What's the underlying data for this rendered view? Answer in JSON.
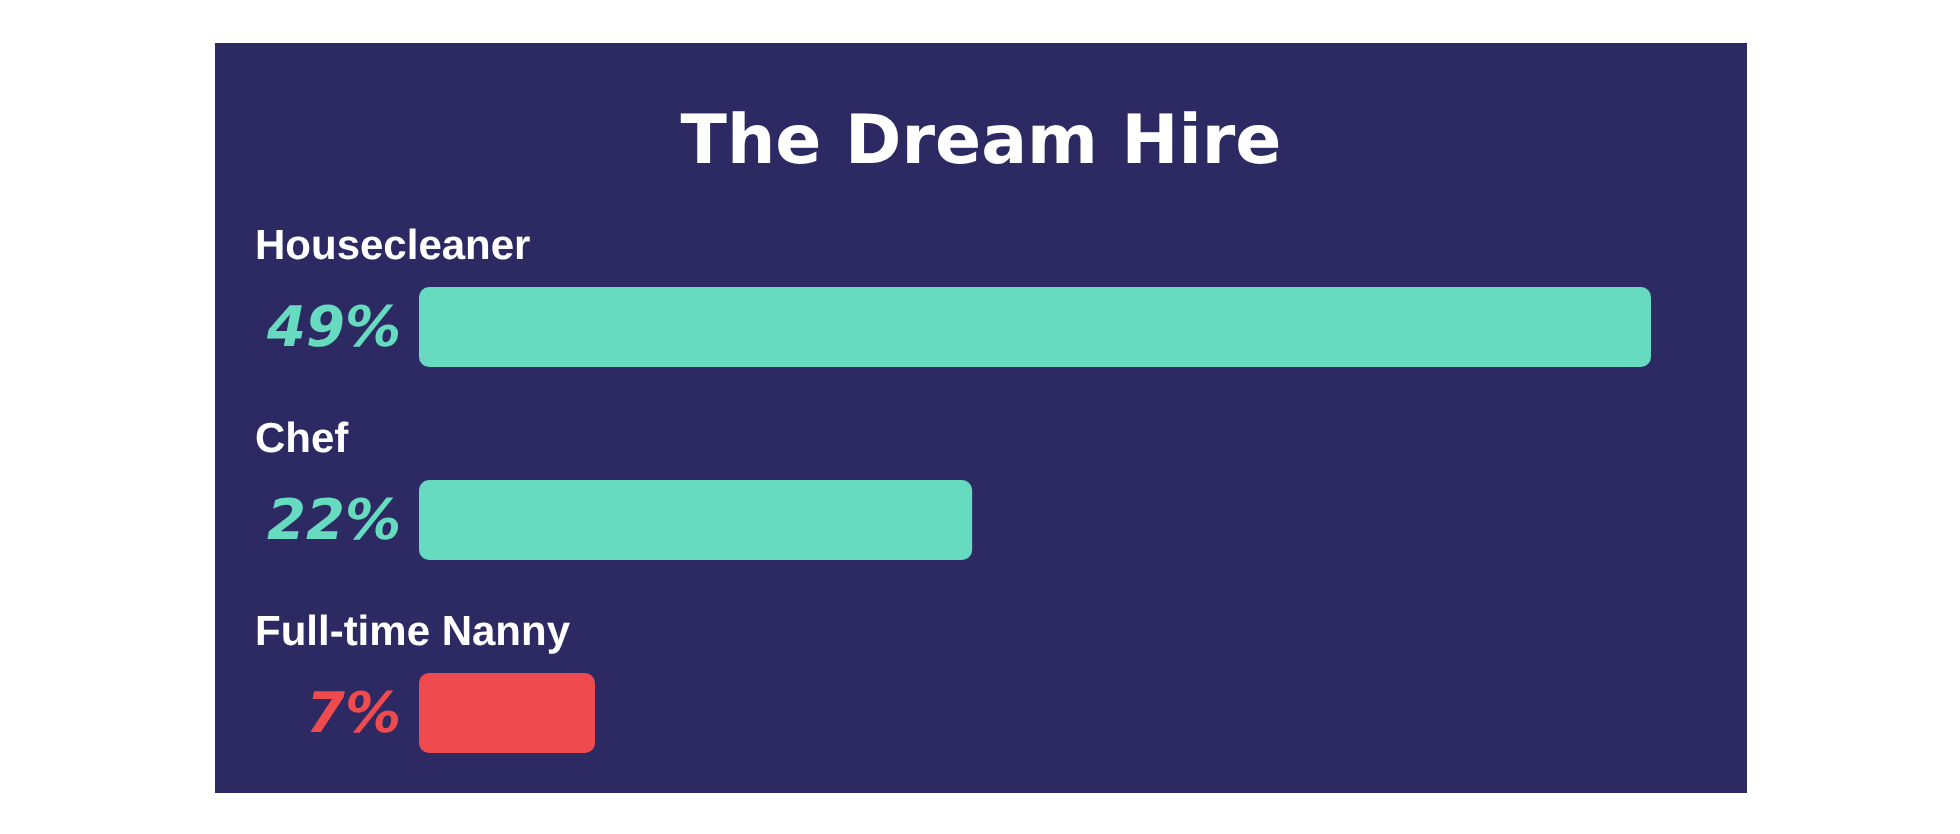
{
  "chart_data": {
    "type": "bar",
    "orientation": "horizontal",
    "title": "The Dream Hire",
    "categories": [
      "Housecleaner",
      "Chef",
      "Full-time Nanny"
    ],
    "values": [
      49,
      22,
      7
    ],
    "colors": [
      "#66dbbf",
      "#66dbbf",
      "#ef4b4f"
    ],
    "value_labels": [
      "49%",
      "22%",
      "7%"
    ],
    "xlim": [
      0,
      49
    ],
    "tick_labels": "y"
  }
}
